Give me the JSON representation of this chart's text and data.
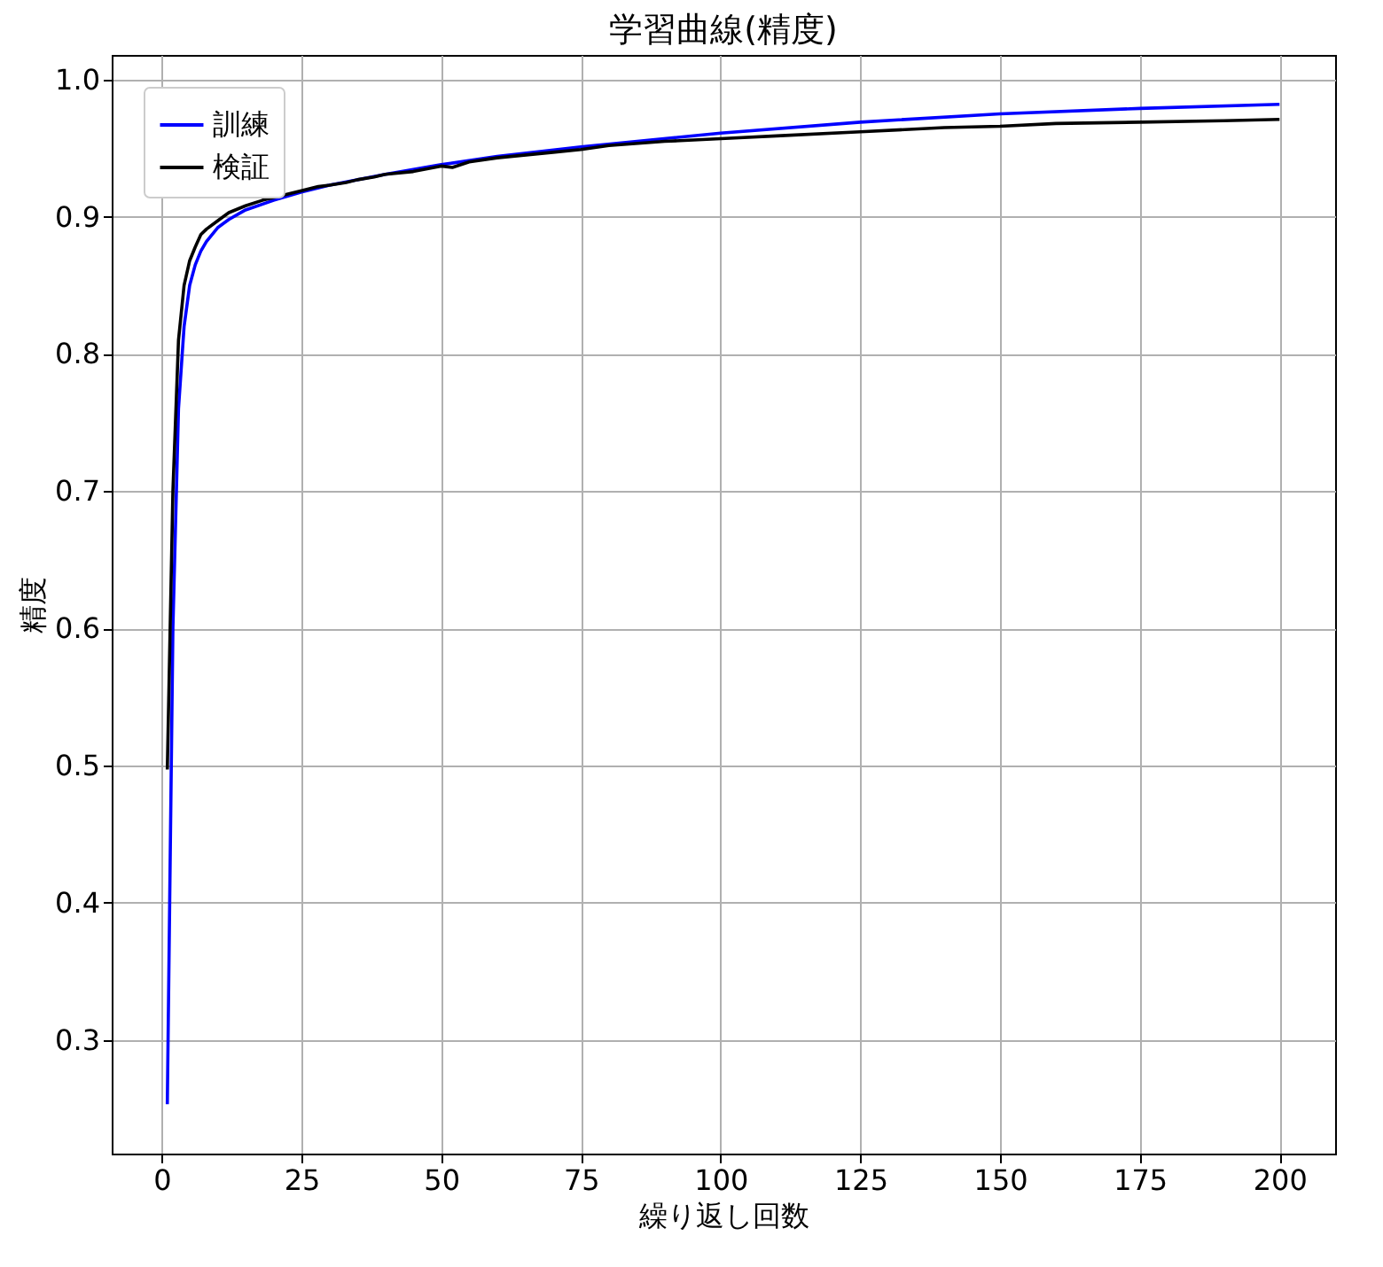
{
  "chart_data": {
    "type": "line",
    "title": "学習曲線(精度)",
    "xlabel": "繰り返し回数",
    "ylabel": "精度",
    "xlim": [
      -8.95,
      209.95
    ],
    "ylim": [
      0.217,
      1.018
    ],
    "xticks": [
      0,
      25,
      50,
      75,
      100,
      125,
      150,
      175,
      200
    ],
    "yticks": [
      0.3,
      0.4,
      0.5,
      0.6,
      0.7,
      0.8,
      0.9,
      {
        "value": 1,
        "label": "1.0"
      }
    ],
    "grid": true,
    "legend": "top left",
    "line_style": "solid",
    "marker": "none",
    "series": [
      {
        "name": "訓練",
        "color": "#0000ff",
        "x": [
          1,
          2,
          3,
          4,
          5,
          6,
          7,
          8,
          10,
          12,
          15,
          20,
          25,
          30,
          40,
          50,
          60,
          75,
          100,
          125,
          150,
          175,
          200
        ],
        "values": [
          0.253,
          0.6,
          0.76,
          0.82,
          0.85,
          0.865,
          0.875,
          0.882,
          0.892,
          0.898,
          0.905,
          0.912,
          0.918,
          0.923,
          0.931,
          0.938,
          0.944,
          0.951,
          0.961,
          0.969,
          0.975,
          0.979,
          0.982
        ]
      },
      {
        "name": "検証",
        "color": "#000000",
        "x": [
          1,
          2,
          3,
          4,
          5,
          6,
          7,
          8,
          10,
          12,
          15,
          18,
          20,
          25,
          28,
          30,
          33,
          35,
          38,
          40,
          45,
          50,
          52,
          55,
          60,
          70,
          75,
          80,
          90,
          100,
          110,
          125,
          140,
          150,
          160,
          175,
          190,
          200
        ],
        "values": [
          0.497,
          0.7,
          0.81,
          0.85,
          0.868,
          0.878,
          0.887,
          0.891,
          0.897,
          0.903,
          0.908,
          0.912,
          0.914,
          0.919,
          0.922,
          0.923,
          0.925,
          0.927,
          0.929,
          0.931,
          0.933,
          0.937,
          0.936,
          0.94,
          0.943,
          0.947,
          0.949,
          0.952,
          0.955,
          0.957,
          0.959,
          0.962,
          0.965,
          0.966,
          0.968,
          0.969,
          0.97,
          0.971
        ]
      }
    ]
  }
}
